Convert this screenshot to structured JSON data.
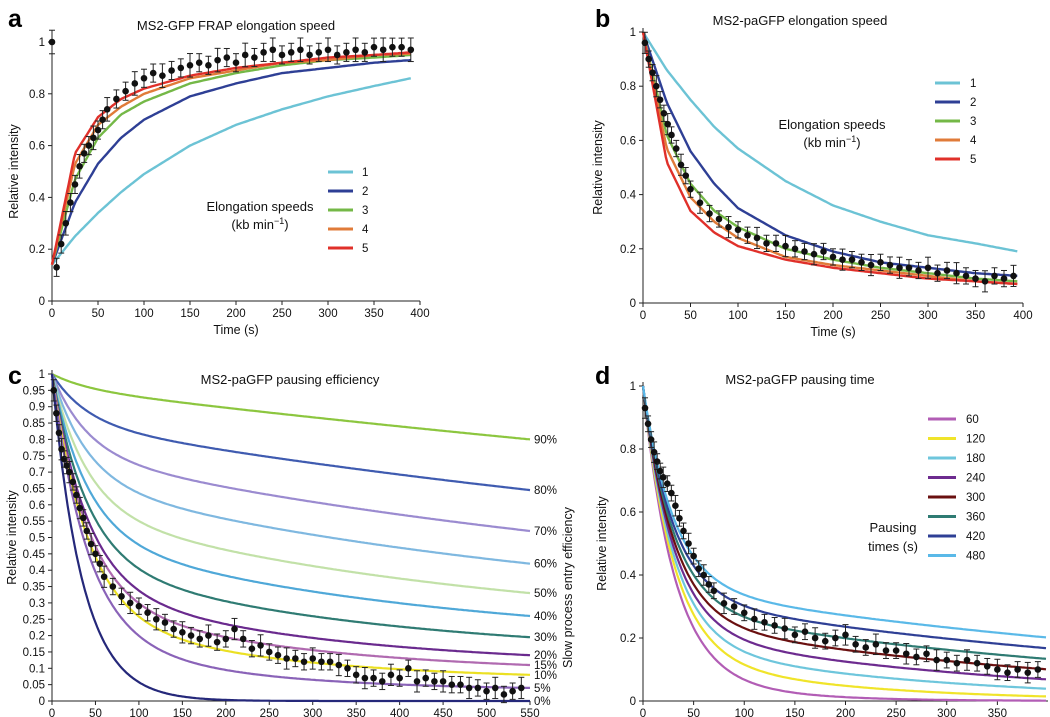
{
  "chart_data": [
    {
      "panel": "a",
      "type": "line",
      "title": "MS2-GFP FRAP elongation speed",
      "xlabel": "Time (s)",
      "ylabel": "Relative intensity",
      "xlim": [
        0,
        400
      ],
      "ylim": [
        0,
        1
      ],
      "xticks": [
        0,
        50,
        100,
        150,
        200,
        250,
        300,
        350,
        400
      ],
      "yticks": [
        0,
        0.2,
        0.4,
        0.6,
        0.8,
        1
      ],
      "ytick_labels": [
        "0",
        "0.2",
        "0.4",
        "0.6",
        "0.8",
        "1"
      ],
      "legend_title": [
        "Elongation speeds",
        "(kb min",
        "−1",
        ")"
      ],
      "series": [
        {
          "name": "1",
          "color": "#6cc3d5",
          "x": [
            0,
            25,
            50,
            75,
            100,
            150,
            200,
            250,
            300,
            350,
            390
          ],
          "values": [
            0.14,
            0.25,
            0.34,
            0.42,
            0.49,
            0.6,
            0.68,
            0.74,
            0.79,
            0.83,
            0.86
          ]
        },
        {
          "name": "2",
          "color": "#2e3f95",
          "x": [
            0,
            25,
            50,
            75,
            100,
            150,
            200,
            250,
            300,
            350,
            390
          ],
          "values": [
            0.14,
            0.38,
            0.53,
            0.63,
            0.7,
            0.79,
            0.84,
            0.88,
            0.9,
            0.92,
            0.93
          ]
        },
        {
          "name": "3",
          "color": "#74b847",
          "x": [
            0,
            25,
            50,
            75,
            100,
            150,
            200,
            250,
            300,
            350,
            390
          ],
          "values": [
            0.14,
            0.47,
            0.63,
            0.72,
            0.77,
            0.84,
            0.88,
            0.91,
            0.93,
            0.94,
            0.95
          ]
        },
        {
          "name": "4",
          "color": "#e07b39",
          "x": [
            0,
            25,
            50,
            75,
            100,
            150,
            200,
            250,
            300,
            350,
            390
          ],
          "values": [
            0.14,
            0.53,
            0.68,
            0.75,
            0.8,
            0.86,
            0.89,
            0.92,
            0.93,
            0.95,
            0.955
          ]
        },
        {
          "name": "5",
          "color": "#e0302a",
          "x": [
            0,
            25,
            50,
            75,
            100,
            150,
            200,
            250,
            300,
            350,
            390
          ],
          "values": [
            0.14,
            0.57,
            0.71,
            0.78,
            0.82,
            0.87,
            0.9,
            0.92,
            0.94,
            0.95,
            0.96
          ]
        }
      ],
      "points": {
        "x": [
          0,
          5,
          10,
          15,
          20,
          25,
          30,
          35,
          40,
          45,
          50,
          55,
          60,
          70,
          80,
          90,
          100,
          110,
          120,
          130,
          140,
          150,
          160,
          170,
          180,
          190,
          200,
          210,
          220,
          230,
          240,
          250,
          260,
          270,
          280,
          290,
          300,
          310,
          320,
          330,
          340,
          350,
          360,
          370,
          380,
          390
        ],
        "y": [
          1.0,
          0.13,
          0.22,
          0.3,
          0.38,
          0.45,
          0.52,
          0.57,
          0.6,
          0.63,
          0.66,
          0.7,
          0.74,
          0.78,
          0.81,
          0.84,
          0.86,
          0.88,
          0.87,
          0.89,
          0.9,
          0.91,
          0.92,
          0.91,
          0.93,
          0.94,
          0.92,
          0.95,
          0.94,
          0.96,
          0.97,
          0.95,
          0.96,
          0.97,
          0.95,
          0.96,
          0.97,
          0.95,
          0.96,
          0.97,
          0.96,
          0.98,
          0.97,
          0.98,
          0.98,
          0.97
        ],
        "err": 0.035
      }
    },
    {
      "panel": "b",
      "type": "line",
      "title": "MS2-paGFP elongation speed",
      "xlabel": "Time (s)",
      "ylabel": "Relative intensity",
      "xlim": [
        0,
        400
      ],
      "ylim": [
        0,
        1
      ],
      "xticks": [
        0,
        50,
        100,
        150,
        200,
        250,
        300,
        350,
        400
      ],
      "yticks": [
        0,
        0.2,
        0.4,
        0.6,
        0.8,
        1
      ],
      "ytick_labels": [
        "0",
        "0.2",
        "0.4",
        "0.6",
        "0.8",
        "1"
      ],
      "legend_title": [
        "Elongation speeds",
        "(kb min",
        "−1",
        ")"
      ],
      "series": [
        {
          "name": "1",
          "color": "#6cc3d5",
          "x": [
            0,
            25,
            50,
            75,
            100,
            150,
            200,
            250,
            300,
            350,
            395
          ],
          "values": [
            1.0,
            0.86,
            0.75,
            0.65,
            0.57,
            0.45,
            0.36,
            0.3,
            0.25,
            0.22,
            0.19
          ]
        },
        {
          "name": "2",
          "color": "#2e3f95",
          "x": [
            0,
            25,
            50,
            75,
            100,
            150,
            200,
            250,
            300,
            350,
            395
          ],
          "values": [
            1.0,
            0.74,
            0.56,
            0.44,
            0.35,
            0.25,
            0.19,
            0.15,
            0.13,
            0.11,
            0.1
          ]
        },
        {
          "name": "3",
          "color": "#74b847",
          "x": [
            0,
            25,
            50,
            75,
            100,
            150,
            200,
            250,
            300,
            350,
            395
          ],
          "values": [
            1.0,
            0.62,
            0.44,
            0.34,
            0.28,
            0.2,
            0.16,
            0.13,
            0.11,
            0.09,
            0.08
          ]
        },
        {
          "name": "4",
          "color": "#e07b39",
          "x": [
            0,
            25,
            50,
            75,
            100,
            150,
            200,
            250,
            300,
            350,
            395
          ],
          "values": [
            1.0,
            0.57,
            0.39,
            0.3,
            0.24,
            0.17,
            0.14,
            0.12,
            0.1,
            0.08,
            0.07
          ]
        },
        {
          "name": "5",
          "color": "#e0302a",
          "x": [
            0,
            25,
            50,
            75,
            100,
            150,
            200,
            250,
            300,
            350,
            395
          ],
          "values": [
            1.0,
            0.52,
            0.34,
            0.26,
            0.21,
            0.16,
            0.13,
            0.11,
            0.09,
            0.08,
            0.07
          ]
        }
      ],
      "points": {
        "x": [
          2,
          6,
          10,
          14,
          18,
          22,
          26,
          30,
          35,
          40,
          45,
          50,
          60,
          70,
          80,
          90,
          100,
          110,
          120,
          130,
          140,
          150,
          160,
          170,
          180,
          190,
          200,
          210,
          220,
          230,
          240,
          250,
          260,
          270,
          280,
          290,
          300,
          310,
          320,
          330,
          340,
          350,
          360,
          370,
          380,
          390
        ],
        "y": [
          0.96,
          0.9,
          0.85,
          0.8,
          0.75,
          0.7,
          0.66,
          0.62,
          0.57,
          0.51,
          0.47,
          0.42,
          0.37,
          0.33,
          0.31,
          0.28,
          0.27,
          0.25,
          0.24,
          0.22,
          0.22,
          0.21,
          0.2,
          0.19,
          0.18,
          0.19,
          0.17,
          0.16,
          0.16,
          0.15,
          0.14,
          0.15,
          0.14,
          0.13,
          0.13,
          0.12,
          0.13,
          0.11,
          0.12,
          0.11,
          0.1,
          0.09,
          0.08,
          0.1,
          0.09,
          0.1
        ],
        "err": 0.03
      }
    },
    {
      "panel": "c",
      "type": "line",
      "title": "MS2-paGFP pausing efficiency",
      "xlabel": "Time (s)",
      "ylabel": "Relative intensity",
      "right_label": "Slow process entry efficiency",
      "xlim": [
        0,
        550
      ],
      "ylim": [
        0,
        1
      ],
      "xticks": [
        0,
        50,
        100,
        150,
        200,
        250,
        300,
        350,
        400,
        450,
        500,
        550
      ],
      "yticks": [
        0,
        0.05,
        0.1,
        0.15,
        0.2,
        0.25,
        0.3,
        0.35,
        0.4,
        0.45,
        0.5,
        0.55,
        0.6,
        0.65,
        0.7,
        0.75,
        0.8,
        0.85,
        0.9,
        0.95,
        1
      ],
      "ytick_labels": [
        "0",
        "0.05",
        "0.1",
        "0.15",
        "0.2",
        "0.25",
        "0.3",
        "0.35",
        "0.4",
        "0.45",
        "0.5",
        "0.55",
        "0.6",
        "0.65",
        "0.7",
        "0.75",
        "0.8",
        "0.85",
        "0.9",
        "0.95",
        "1"
      ],
      "series": [
        {
          "name": "90%",
          "color": "#8cc63f",
          "end": 0.8
        },
        {
          "name": "80%",
          "color": "#3f5bb0",
          "end": 0.645
        },
        {
          "name": "70%",
          "color": "#9b8bd0",
          "end": 0.52
        },
        {
          "name": "60%",
          "color": "#7fb8e0",
          "end": 0.42
        },
        {
          "name": "50%",
          "color": "#c2e1a8",
          "end": 0.33
        },
        {
          "name": "40%",
          "color": "#4fa8d8",
          "end": 0.26
        },
        {
          "name": "30%",
          "color": "#2f7b73",
          "end": 0.195
        },
        {
          "name": "20%",
          "color": "#6a2a8e",
          "end": 0.14
        },
        {
          "name": "15%",
          "color": "#b06ab0",
          "end": 0.11
        },
        {
          "name": "10%",
          "color": "#ebe023",
          "end": 0.08
        },
        {
          "name": "5%",
          "color": "#8a63b8",
          "end": 0.04
        },
        {
          "name": "0%",
          "color": "#25287a",
          "end": 0.0
        }
      ],
      "points": {
        "x": [
          2,
          5,
          8,
          11,
          14,
          17,
          20,
          24,
          28,
          32,
          36,
          40,
          45,
          50,
          55,
          60,
          70,
          80,
          90,
          100,
          110,
          120,
          130,
          140,
          150,
          160,
          170,
          180,
          190,
          200,
          210,
          220,
          230,
          240,
          250,
          260,
          270,
          280,
          290,
          300,
          310,
          320,
          330,
          340,
          350,
          360,
          370,
          380,
          390,
          400,
          410,
          420,
          430,
          440,
          450,
          460,
          470,
          480,
          490,
          500,
          510,
          520,
          530,
          540
        ],
        "y": [
          0.95,
          0.88,
          0.82,
          0.77,
          0.74,
          0.72,
          0.7,
          0.67,
          0.63,
          0.59,
          0.56,
          0.52,
          0.48,
          0.45,
          0.42,
          0.38,
          0.35,
          0.32,
          0.3,
          0.29,
          0.27,
          0.25,
          0.24,
          0.22,
          0.21,
          0.2,
          0.19,
          0.2,
          0.18,
          0.19,
          0.22,
          0.19,
          0.16,
          0.17,
          0.15,
          0.14,
          0.13,
          0.13,
          0.12,
          0.13,
          0.12,
          0.12,
          0.11,
          0.1,
          0.08,
          0.07,
          0.07,
          0.06,
          0.08,
          0.07,
          0.1,
          0.06,
          0.07,
          0.06,
          0.06,
          0.05,
          0.05,
          0.04,
          0.04,
          0.03,
          0.04,
          0.02,
          0.03,
          0.04
        ],
        "err": 0.025
      }
    },
    {
      "panel": "d",
      "type": "line",
      "title": "MS2-paGFP pausing time",
      "xlabel": "Time (s)",
      "ylabel": "Relative intensity",
      "xlim": [
        0,
        400
      ],
      "ylim": [
        0,
        1
      ],
      "xticks": [
        0,
        50,
        100,
        150,
        200,
        250,
        300,
        350
      ],
      "yticks": [
        0,
        0.2,
        0.4,
        0.6,
        0.8,
        1
      ],
      "ytick_labels": [
        "0",
        "0.2",
        "0.4",
        "0.6",
        "0.8",
        "1"
      ],
      "legend_title": [
        "Pausing",
        "times (s)"
      ],
      "series": [
        {
          "name": "60",
          "color": "#b25db5",
          "tau": 60
        },
        {
          "name": "120",
          "color": "#f0e42a",
          "tau": 120
        },
        {
          "name": "180",
          "color": "#6ec6dc",
          "tau": 180
        },
        {
          "name": "240",
          "color": "#6d2b8f",
          "tau": 240
        },
        {
          "name": "300",
          "color": "#6a1010",
          "tau": 300
        },
        {
          "name": "360",
          "color": "#2f7b73",
          "tau": 360
        },
        {
          "name": "420",
          "color": "#2e3f95",
          "tau": 420
        },
        {
          "name": "480",
          "color": "#5ab9e8",
          "tau": 480
        }
      ],
      "points": {
        "x": [
          2,
          5,
          8,
          11,
          14,
          17,
          20,
          24,
          28,
          32,
          36,
          40,
          45,
          50,
          55,
          60,
          65,
          70,
          80,
          90,
          100,
          110,
          120,
          130,
          140,
          150,
          160,
          170,
          180,
          190,
          200,
          210,
          220,
          230,
          240,
          250,
          260,
          270,
          280,
          290,
          300,
          310,
          320,
          330,
          340,
          350,
          360,
          370,
          380,
          390
        ],
        "y": [
          0.93,
          0.88,
          0.83,
          0.79,
          0.76,
          0.73,
          0.71,
          0.69,
          0.66,
          0.62,
          0.58,
          0.54,
          0.5,
          0.46,
          0.42,
          0.4,
          0.37,
          0.35,
          0.31,
          0.3,
          0.28,
          0.26,
          0.25,
          0.24,
          0.23,
          0.21,
          0.22,
          0.2,
          0.19,
          0.2,
          0.21,
          0.18,
          0.17,
          0.18,
          0.16,
          0.16,
          0.15,
          0.14,
          0.15,
          0.13,
          0.13,
          0.12,
          0.13,
          0.12,
          0.11,
          0.1,
          0.09,
          0.1,
          0.09,
          0.1
        ],
        "err": 0.025
      }
    }
  ]
}
